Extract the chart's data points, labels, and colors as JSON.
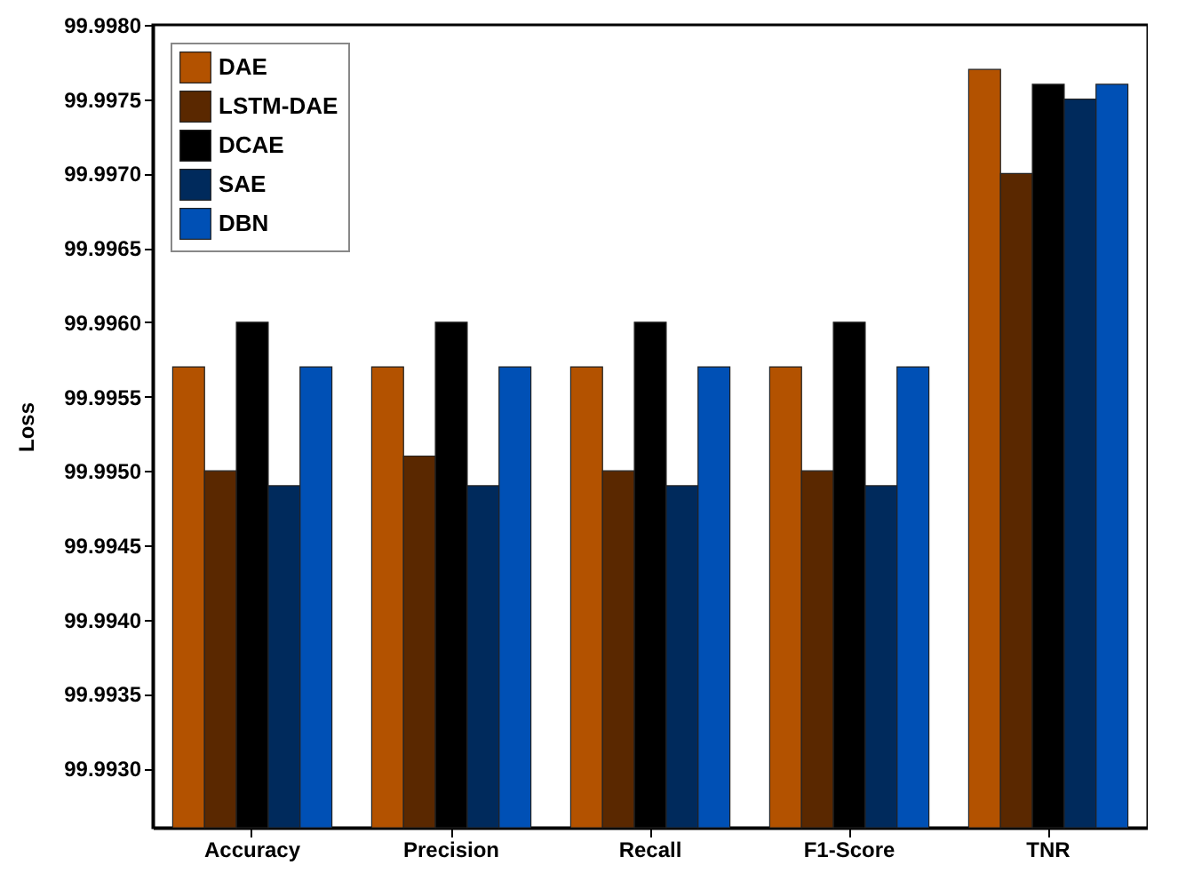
{
  "chart_data": {
    "type": "bar",
    "ylabel": "Loss",
    "categories": [
      "Accuracy",
      "Precision",
      "Recall",
      "F1-Score",
      "TNR"
    ],
    "series": [
      {
        "name": "DAE",
        "color": "#b35200",
        "values": [
          99.9957,
          99.9957,
          99.9957,
          99.9957,
          99.9977
        ]
      },
      {
        "name": "LSTM-DAE",
        "color": "#5a2800",
        "values": [
          99.995,
          99.9951,
          99.995,
          99.995,
          99.997
        ]
      },
      {
        "name": "DCAE",
        "color": "#000000",
        "values": [
          99.996,
          99.996,
          99.996,
          99.996,
          99.9976
        ]
      },
      {
        "name": "SAE",
        "color": "#002a5c",
        "values": [
          99.9949,
          99.9949,
          99.9949,
          99.9949,
          99.9975
        ]
      },
      {
        "name": "DBN",
        "color": "#0050b5",
        "values": [
          99.9957,
          99.9957,
          99.9957,
          99.9957,
          99.9976
        ]
      }
    ],
    "ylim": [
      99.9926,
      99.998
    ],
    "yticks": [
      {
        "value": 99.993,
        "label": "99.9930"
      },
      99.9935,
      {
        "value": 99.994,
        "label": "99.9940"
      },
      99.9945,
      {
        "value": 99.995,
        "label": "99.9950"
      },
      99.9955,
      {
        "value": 99.996,
        "label": "99.9960"
      },
      99.9965,
      {
        "value": 99.997,
        "label": "99.9970"
      },
      99.9975,
      {
        "value": 99.998,
        "label": "99.9980"
      }
    ],
    "grid": false,
    "legend": "top left"
  }
}
